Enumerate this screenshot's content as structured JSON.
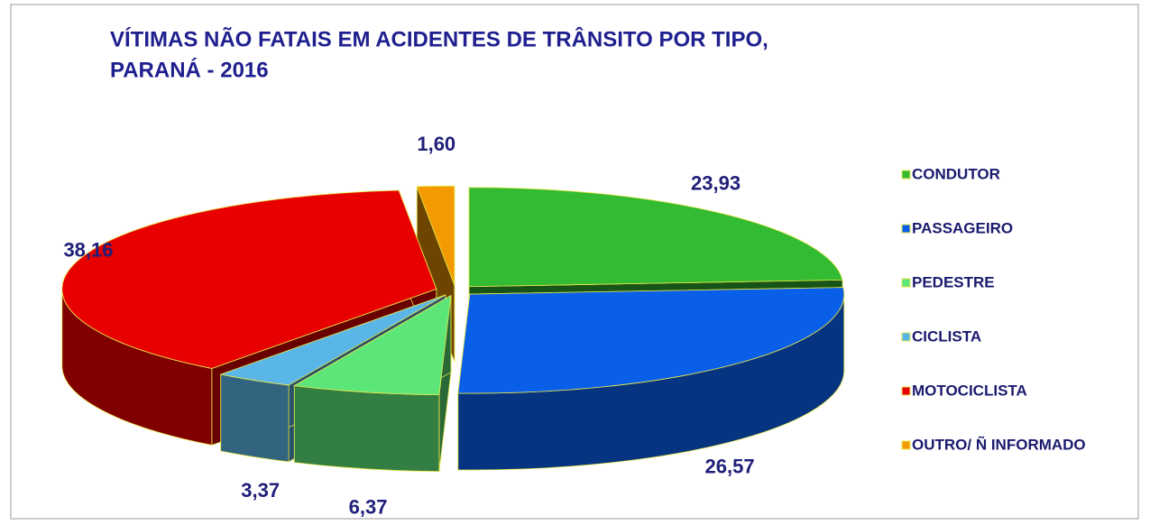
{
  "chart_data": {
    "type": "pie",
    "title": [
      "VÍTIMAS NÃO FATAIS EM ACIDENTES DE TRÂNSITO POR TIPO,",
      "PARANÁ - 2016"
    ],
    "categories": [
      "CONDUTOR",
      "PASSAGEIRO",
      "PEDESTRE",
      "CICLISTA",
      "MOTOCICLISTA",
      "OUTRO/ Ñ INFORMADO"
    ],
    "values": [
      23.93,
      26.57,
      6.37,
      3.37,
      38.16,
      1.6
    ],
    "value_labels": [
      "23,93",
      "26,57",
      "6,37",
      "3,37",
      "38,16",
      "1,60"
    ],
    "colors": [
      "#33bb33",
      "#0a5fe8",
      "#5ce67a",
      "#5bb6e8",
      "#e80000",
      "#f29a00"
    ],
    "legend": "right"
  }
}
